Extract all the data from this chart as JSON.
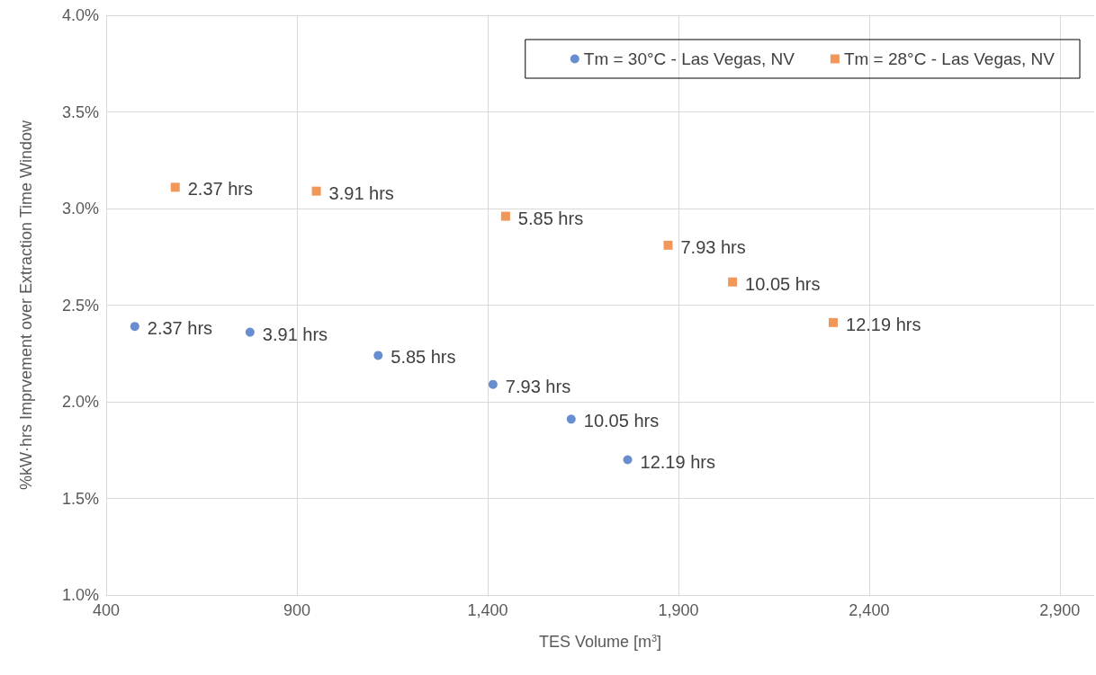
{
  "chart_data": {
    "type": "scatter",
    "xlabel": "TES Volume [m$^{3}$]",
    "ylabel": "%kW·hrs Imprvement over Extraction Time Window",
    "xlim": [
      400,
      2990
    ],
    "xticks": [
      {
        "value": 400,
        "label": "400"
      },
      {
        "value": 900,
        "label": "900"
      },
      {
        "value": 1400,
        "label": "1,400"
      },
      {
        "value": 1900,
        "label": "1,900"
      },
      {
        "value": 2400,
        "label": "2,400"
      },
      {
        "value": 2900,
        "label": "2,900"
      }
    ],
    "ylim": [
      1.0,
      4.0
    ],
    "yticks": [
      {
        "value": 1.0,
        "label": "1.0%"
      },
      {
        "value": 1.5,
        "label": "1.5%"
      },
      {
        "value": 2.0,
        "label": "2.0%"
      },
      {
        "value": 2.5,
        "label": "2.5%"
      },
      {
        "value": 3.0,
        "label": "3.0%"
      },
      {
        "value": 3.5,
        "label": "3.5%"
      },
      {
        "value": 4.0,
        "label": "4.0%"
      }
    ],
    "grid": true,
    "legend": "top right",
    "annotations": [
      {
        "text": "2.37 hrs",
        "x": 475,
        "y": 2.39
      },
      {
        "text": "3.91 hrs",
        "x": 777,
        "y": 2.36
      },
      {
        "text": "5.85 hrs",
        "x": 1113,
        "y": 2.24
      },
      {
        "text": "7.93 hrs",
        "x": 1414,
        "y": 2.09
      },
      {
        "text": "10.05 hrs",
        "x": 1619,
        "y": 1.91
      },
      {
        "text": "12.19 hrs",
        "x": 1767,
        "y": 1.7
      },
      {
        "text": "2.37 hrs",
        "x": 581,
        "y": 3.11
      },
      {
        "text": "3.91 hrs",
        "x": 951,
        "y": 3.09
      },
      {
        "text": "5.85 hrs",
        "x": 1447,
        "y": 2.96
      },
      {
        "text": "7.93 hrs",
        "x": 1873,
        "y": 2.81
      },
      {
        "text": "10.05 hrs",
        "x": 2042,
        "y": 2.62
      },
      {
        "text": "12.19 hrs",
        "x": 2306,
        "y": 2.41
      }
    ],
    "series": [
      {
        "name": "Tm = 30°C - Las Vegas, NV",
        "color": "#4472c4",
        "marker": "circle",
        "x": [
          475,
          777,
          1113,
          1414,
          1619,
          1767
        ],
        "values": [
          2.39,
          2.36,
          2.24,
          2.09,
          1.91,
          1.7
        ]
      },
      {
        "name": "Tm = 28°C - Las Vegas, NV",
        "color": "#ed7d31",
        "marker": "square",
        "x": [
          581,
          951,
          1447,
          1873,
          2042,
          2306
        ],
        "values": [
          3.11,
          3.09,
          2.96,
          2.81,
          2.62,
          2.41
        ]
      }
    ]
  }
}
